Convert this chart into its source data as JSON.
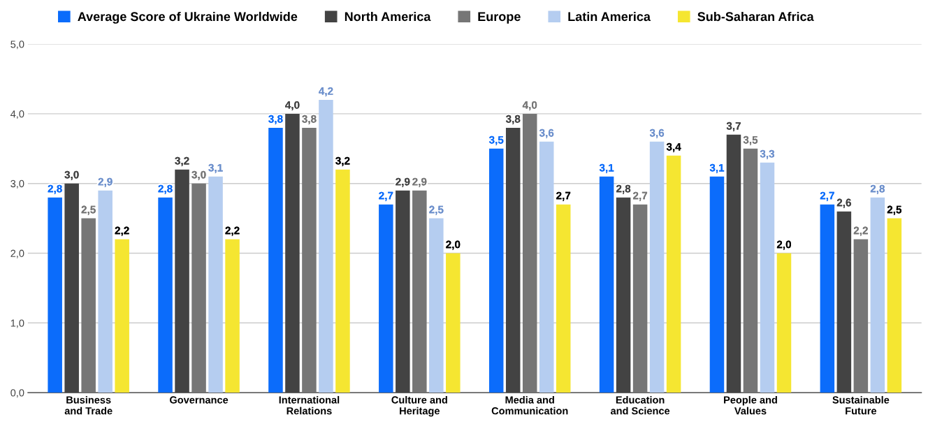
{
  "chart_data": {
    "type": "bar",
    "categories": [
      "Business\nand Trade",
      "Governance",
      "International\nRelations",
      "Culture and\nHeritage",
      "Media and\nCommunication",
      "Education\nand Science",
      "People and\nValues",
      "Sustainable\nFuture"
    ],
    "series": [
      {
        "name": "Average Score of Ukraine Worldwide",
        "color": "#0b6cfb",
        "values": [
          2.8,
          2.8,
          3.8,
          2.7,
          3.5,
          3.1,
          3.1,
          2.7
        ],
        "value_labels": [
          "2,8",
          "2,8",
          "3,8",
          "2,7",
          "3,5",
          "3,1",
          "3,1",
          "2,7"
        ]
      },
      {
        "name": "North America",
        "color": "#434343",
        "values": [
          3.0,
          3.2,
          4.0,
          2.9,
          3.8,
          2.8,
          3.7,
          2.6
        ],
        "value_labels": [
          "3,0",
          "3,2",
          "4,0",
          "2,9",
          "3,8",
          "2,8",
          "3,7",
          "2,6"
        ]
      },
      {
        "name": "Europe",
        "color": "#767676",
        "values": [
          2.5,
          3.0,
          3.8,
          2.9,
          4.0,
          2.7,
          3.5,
          2.2
        ],
        "value_labels": [
          "2,5",
          "3,0",
          "3,8",
          "2,9",
          "4,0",
          "2,7",
          "3,5",
          "2,2"
        ]
      },
      {
        "name": "Latin America",
        "color": "#b5cdf0",
        "values": [
          2.9,
          3.1,
          4.2,
          2.5,
          3.6,
          3.6,
          3.3,
          2.8
        ],
        "value_labels": [
          "2,9",
          "3,1",
          "4,2",
          "2,5",
          "3,6",
          "3,6",
          "3,3",
          "2,8"
        ]
      },
      {
        "name": "Sub-Saharan Africa",
        "color": "#f5e631",
        "values": [
          2.2,
          2.2,
          3.2,
          2.0,
          2.7,
          3.4,
          2.0,
          2.5
        ],
        "value_labels": [
          "2,2",
          "2,2",
          "3,2",
          "2,0",
          "2,7",
          "3,4",
          "2,0",
          "2,5"
        ]
      }
    ],
    "ylim": [
      0,
      5
    ],
    "yticks": [
      {
        "value": 0,
        "label": "0,0"
      },
      {
        "value": 1,
        "label": "1,0"
      },
      {
        "value": 2,
        "label": "2,0"
      },
      {
        "value": 3,
        "label": "3,0"
      },
      {
        "value": 4,
        "label": "4,0"
      },
      {
        "value": 5,
        "label": "5,0"
      }
    ],
    "grid": "y",
    "legend": "top"
  }
}
